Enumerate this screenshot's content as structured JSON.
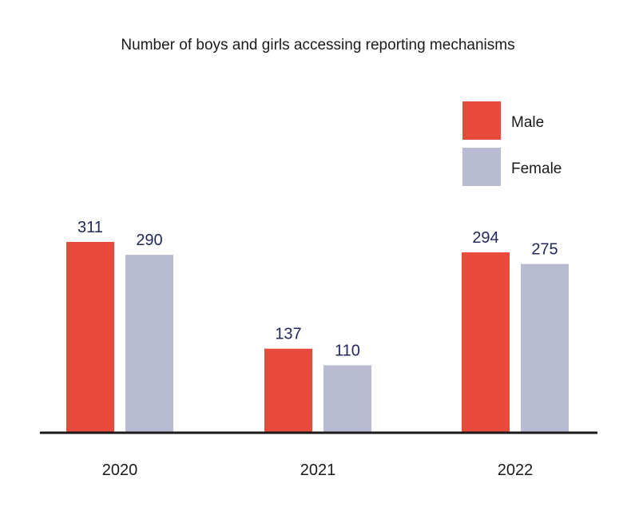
{
  "chart_data": {
    "type": "bar",
    "title": "Number of boys and girls accessing reporting mechanisms",
    "categories": [
      "2020",
      "2021",
      "2022"
    ],
    "series": [
      {
        "name": "Male",
        "values": [
          311,
          137,
          294
        ],
        "color": "#e84b3c"
      },
      {
        "name": "Female",
        "values": [
          290,
          110,
          275
        ],
        "color": "#b8bbd1"
      }
    ],
    "ylim": [
      0,
      311
    ],
    "legend_position": "top-right",
    "grid": false,
    "axis_color": "#1a1a1a",
    "label_color": "#23285a"
  }
}
